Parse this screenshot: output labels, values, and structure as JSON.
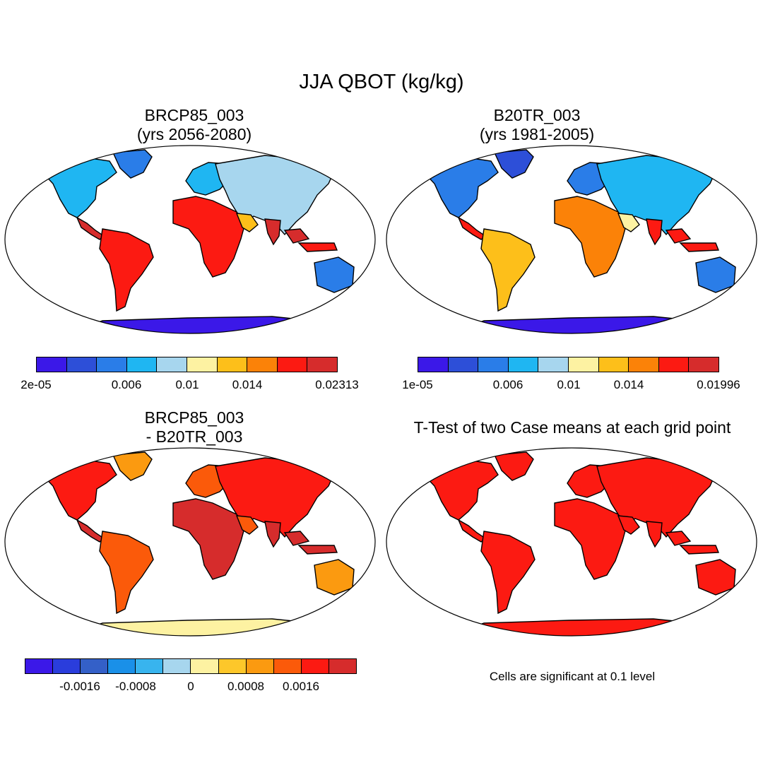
{
  "title": "JJA QBOT (kg/kg)",
  "palette": {
    "ten": [
      "#3b18e8",
      "#2d4fd8",
      "#2a7de8",
      "#1fb6f2",
      "#a7d6ee",
      "#fdf2a2",
      "#fdbf1a",
      "#fb8208",
      "#fc1a12",
      "#d62c2c"
    ],
    "twelve": [
      "#3b18e8",
      "#2a3ddc",
      "#3460c8",
      "#1a90e8",
      "#38b4ee",
      "#a7d6ee",
      "#fdf2a2",
      "#fdc72a",
      "#fb9a10",
      "#fb5a0a",
      "#fc1a12",
      "#d62c2c"
    ],
    "ocean": "#ffffff",
    "outline": "#000000"
  },
  "panels": {
    "top_left": {
      "title1": "BRCP85_003",
      "title2": "(yrs 2056-2080)",
      "colorbar_labels": [
        "2e-05",
        "0.006",
        "0.01",
        "0.014",
        "0.02313"
      ]
    },
    "top_right": {
      "title1": "B20TR_003",
      "title2": "(yrs 1981-2005)",
      "colorbar_labels": [
        "1e-05",
        "0.006",
        "0.01",
        "0.014",
        "0.01996"
      ]
    },
    "bottom_left": {
      "title1": "BRCP85_003",
      "title2": "- B20TR_003",
      "colorbar_labels": [
        "-0.0016",
        "-0.0008",
        "0",
        "0.0008",
        "0.0016"
      ]
    },
    "bottom_right": {
      "title": "T-Test of two Case means at each grid point",
      "note": "Cells are significant at 0.1 level"
    }
  }
}
